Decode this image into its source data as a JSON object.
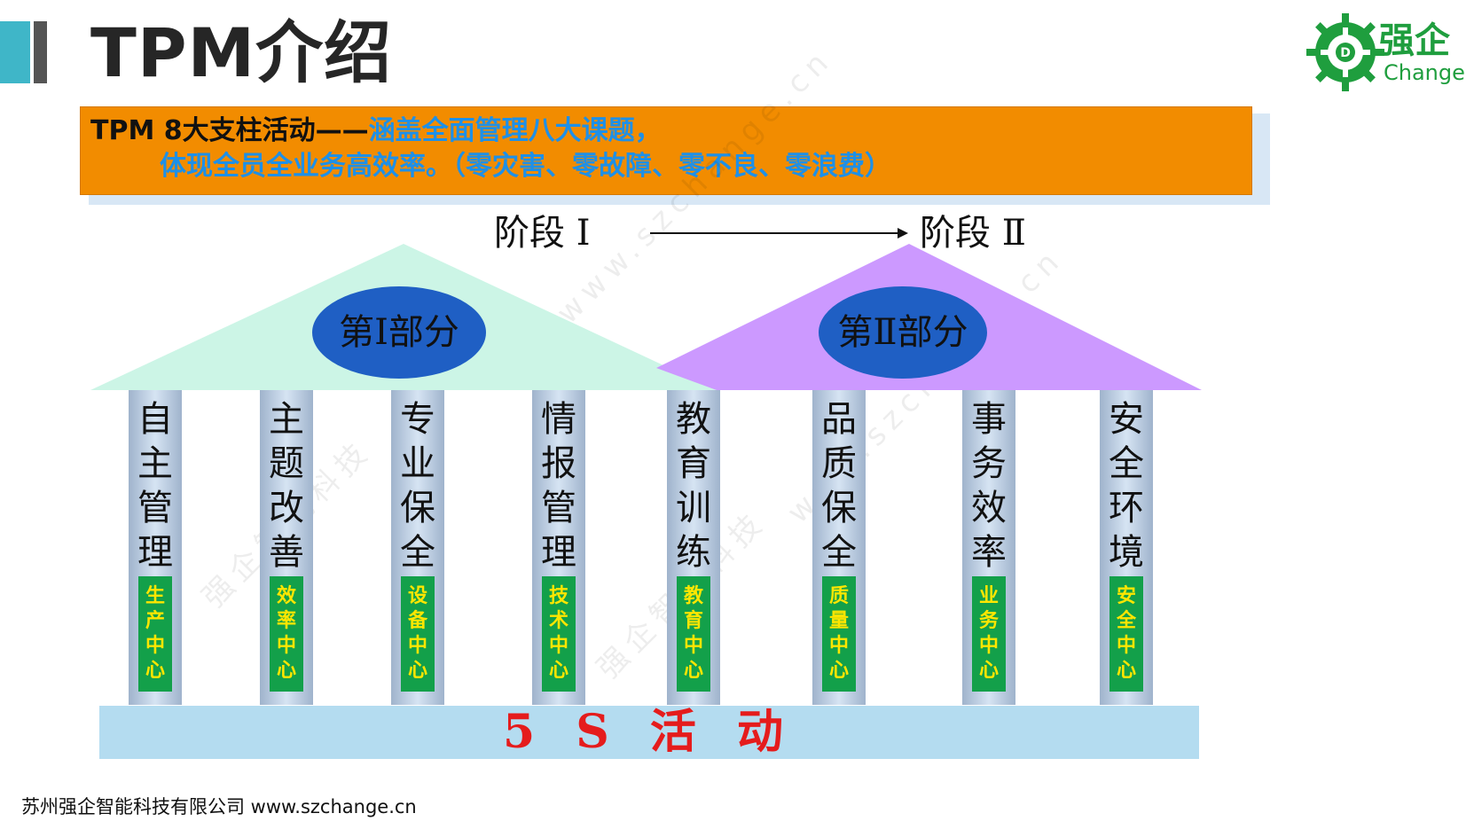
{
  "title": "TPM介绍",
  "logo": {
    "name": "强企",
    "sub": "Change",
    "mark": "D"
  },
  "banner": {
    "line1_prefix": "TPM 8大支柱活动——",
    "line1_suffix": "涵盖全面管理八大课题，",
    "line2": "体现全员全业务高效率。（零灾害、零故障、零不良、零浪费）"
  },
  "stages": {
    "stage1": "阶段 Ⅰ",
    "stage2": "阶段 Ⅱ"
  },
  "roofs": {
    "part1": "第I部分",
    "part2": "第Ⅱ部分"
  },
  "pillars": [
    {
      "name": "自主管理",
      "center": "生产中心"
    },
    {
      "name": "主题改善",
      "center": "效率中心"
    },
    {
      "name": "专业保全",
      "center": "设备中心"
    },
    {
      "name": "情报管理",
      "center": "技术中心"
    },
    {
      "name": "教育训练",
      "center": "教育中心"
    },
    {
      "name": "品质保全",
      "center": "质量中心"
    },
    {
      "name": "事务效率",
      "center": "业务中心"
    },
    {
      "name": "安全环境",
      "center": "安全中心"
    }
  ],
  "foundation": "5 S 活 动",
  "footer": "苏州强企智能科技有限公司 www.szchange.cn",
  "watermarks": [
    "强企智能科技",
    "www.szchange.cn",
    "强企智能科技",
    "www.szchange.cn"
  ],
  "colors": {
    "banner": "#f28c00",
    "banner_blue_text": "#1e90e8",
    "roof_left": "#ccf5e6",
    "roof_right": "#cc99ff",
    "ellipse": "#1f5fc4",
    "center_box": "#13a04a",
    "center_text": "#ffe600",
    "foundation": "#b4dcf0",
    "foundation_text": "#e51c1c",
    "brand": "#1f9e3e"
  }
}
